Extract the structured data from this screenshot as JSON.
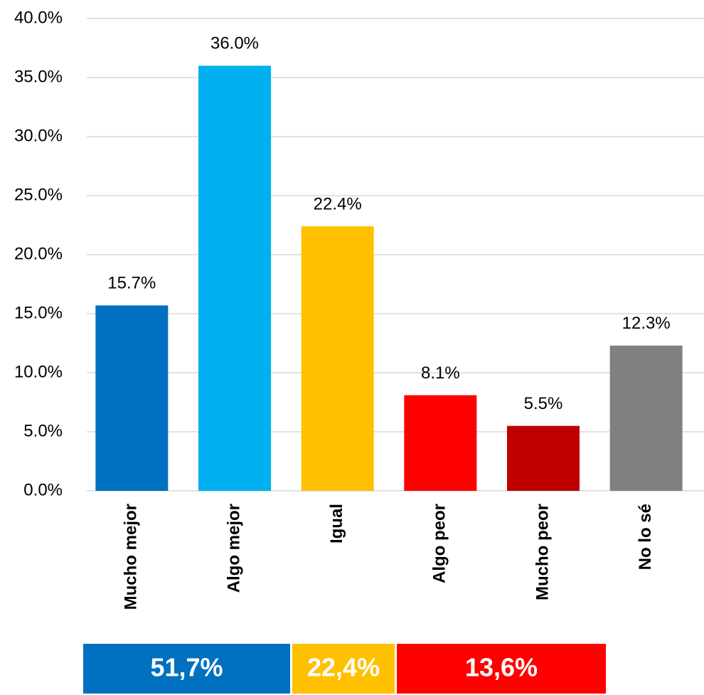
{
  "chart_data": {
    "type": "bar",
    "categories": [
      "Mucho mejor",
      "Algo mejor",
      "Igual",
      "Algo peor",
      "Mucho peor",
      "No lo sé"
    ],
    "values": [
      15.7,
      36.0,
      22.4,
      8.1,
      5.5,
      12.3
    ],
    "value_labels": [
      "15.7%",
      "36.0%",
      "22.4%",
      "8.1%",
      "5.5%",
      "12.3%"
    ],
    "colors": [
      "#0070c0",
      "#00b0f0",
      "#ffc000",
      "#ff0000",
      "#c00000",
      "#808080"
    ],
    "ylim": [
      0,
      40
    ],
    "yticks": [
      {
        "value": 0,
        "label": "0.0%"
      },
      {
        "value": 5,
        "label": "5.0%"
      },
      {
        "value": 10,
        "label": "10.0%"
      },
      {
        "value": 15,
        "label": "15.0%"
      },
      {
        "value": 20,
        "label": "20.0%"
      },
      {
        "value": 25,
        "label": "25.0%"
      },
      {
        "value": 30,
        "label": "30.0%"
      },
      {
        "value": 35,
        "label": "35.0%"
      },
      {
        "value": 40,
        "label": "40.0%"
      }
    ],
    "grid": true,
    "summary": [
      {
        "label": "51,7%",
        "color": "#0070c0"
      },
      {
        "label": "22,4%",
        "color": "#ffc000"
      },
      {
        "label": "13,6%",
        "color": "#ff0000"
      }
    ]
  }
}
